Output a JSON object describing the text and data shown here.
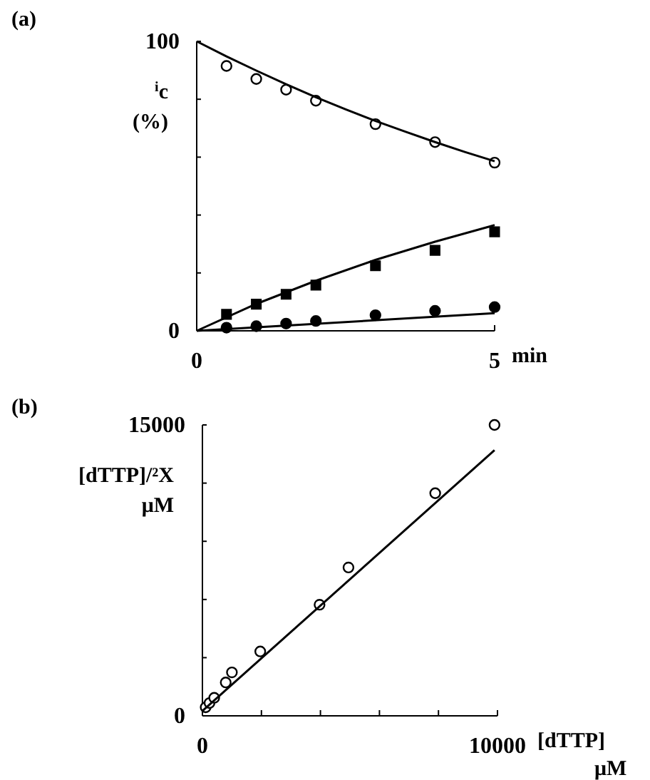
{
  "chart_data": [
    {
      "type": "scatter",
      "title": "(a)",
      "ylabel": "$^{i}$c (%)",
      "xlabel": "min",
      "xlim": [
        0,
        5
      ],
      "ylim": [
        0,
        100
      ],
      "xticks": [
        0,
        5
      ],
      "yticks": [
        0,
        {
          "value": 20,
          "label": null
        },
        {
          "value": 40,
          "label": null
        },
        {
          "value": 60,
          "label": null
        },
        {
          "value": 80,
          "label": null
        },
        100
      ],
      "grid": false,
      "series": [
        {
          "type": "scatter",
          "marker": "circle",
          "color": "#ffffff",
          "x": [
            0.5,
            1,
            1.5,
            2,
            3,
            4,
            5
          ],
          "values": [
            91.5,
            87,
            83.3,
            79.5,
            71.4,
            65.2,
            58.1
          ]
        },
        {
          "type": "scatter",
          "marker": "square",
          "color": "#000000",
          "x": [
            0.5,
            1,
            1.5,
            2,
            3,
            4,
            5
          ],
          "values": [
            5.7,
            9.2,
            12.6,
            15.8,
            22.5,
            27.8,
            34.2
          ]
        },
        {
          "type": "scatter",
          "marker": "circle",
          "color": "#000000",
          "x": [
            0.5,
            1,
            1.5,
            2,
            3,
            4,
            5
          ],
          "values": [
            1.1,
            1.6,
            2.5,
            3.4,
            5.4,
            6.9,
            8.2
          ]
        },
        {
          "type": "line",
          "marker": "none",
          "color": "#000000",
          "x": [
            0,
            0.5,
            1,
            1.5,
            2,
            2.5,
            3,
            3.5,
            4,
            4.5,
            5
          ],
          "values": [
            100,
            94.8,
            89.9,
            85.2,
            80.7,
            76.5,
            72.5,
            68.8,
            65.2,
            61.8,
            58.6
          ]
        },
        {
          "type": "line",
          "marker": "none",
          "color": "#000000",
          "x": [
            0,
            1,
            2,
            3,
            4,
            5
          ],
          "values": [
            0,
            9.3,
            17.3,
            24.5,
            30.8,
            36.5
          ]
        },
        {
          "type": "line",
          "marker": "none",
          "color": "#000000",
          "x": [
            0,
            5
          ],
          "values": [
            0,
            6.1
          ]
        }
      ]
    },
    {
      "type": "scatter",
      "title": "(b)",
      "ylabel": "[dTTP]/²X μM",
      "xlabel": "[dTTP] μM",
      "xlim": [
        0,
        10000
      ],
      "ylim": [
        0,
        15000
      ],
      "xticks": [
        0,
        {
          "value": 2000,
          "label": null
        },
        {
          "value": 4000,
          "label": null
        },
        {
          "value": 6000,
          "label": null
        },
        {
          "value": 8000,
          "label": null
        },
        10000
      ],
      "yticks": [
        0,
        {
          "value": 3000,
          "label": null
        },
        {
          "value": 6000,
          "label": null
        },
        {
          "value": 9000,
          "label": null
        },
        {
          "value": 12000,
          "label": null
        },
        15000
      ],
      "grid": false,
      "series": [
        {
          "type": "scatter",
          "marker": "circle",
          "color": "#ffffff",
          "x": [
            110,
            240,
            400,
            790,
            1000,
            1960,
            3970,
            4950,
            7890,
            9900
          ],
          "values": [
            440,
            660,
            930,
            1720,
            2240,
            3320,
            5730,
            7650,
            11480,
            15000
          ]
        },
        {
          "type": "line",
          "marker": "none",
          "color": "#000000",
          "x": [
            0,
            9900
          ],
          "values": [
            250,
            13700
          ]
        }
      ]
    }
  ]
}
